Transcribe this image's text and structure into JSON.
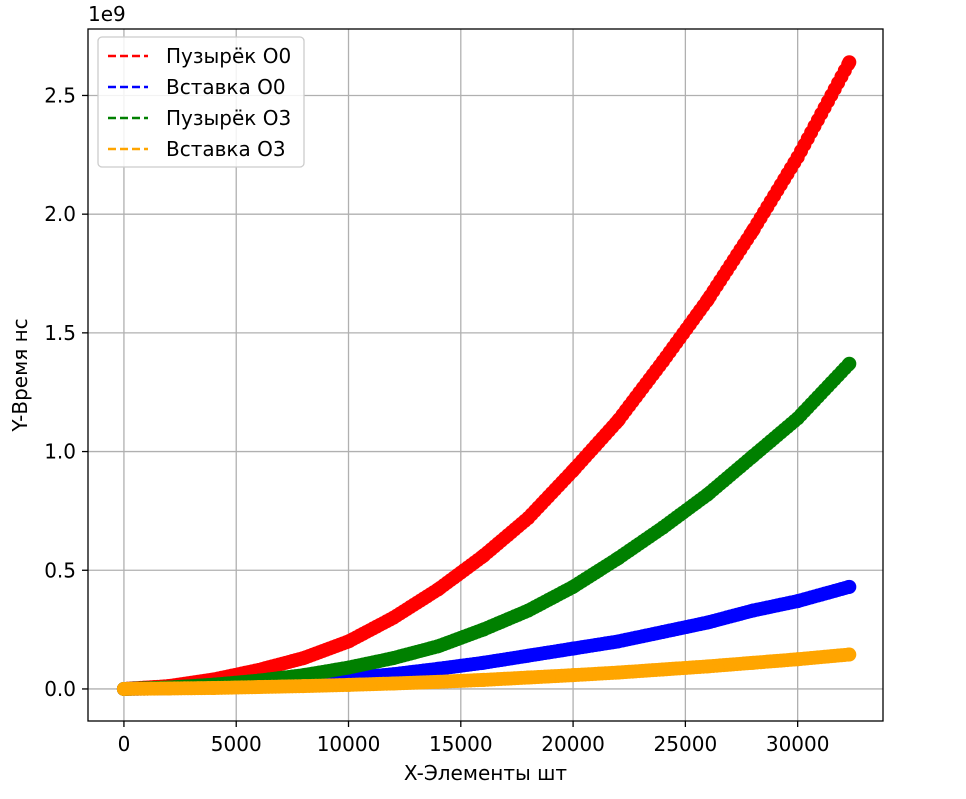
{
  "chart_data": {
    "type": "scatter",
    "title": "",
    "xlabel": "X-Элементы шт",
    "ylabel": "Y-Время нс",
    "y_offset_text": "1e9",
    "xlim": [
      -1600,
      33800
    ],
    "ylim": [
      -0.135,
      2.78
    ],
    "x_ticks": [
      0,
      5000,
      10000,
      15000,
      20000,
      25000,
      30000
    ],
    "x_tick_labels": [
      "0",
      "5000",
      "10000",
      "15000",
      "20000",
      "25000",
      "30000"
    ],
    "y_ticks": [
      0.0,
      0.5,
      1.0,
      1.5,
      2.0,
      2.5
    ],
    "y_tick_labels": [
      "0.0",
      "0.5",
      "1.0",
      "1.5",
      "2.0",
      "2.5"
    ],
    "grid": true,
    "legend_position": "top-left",
    "series": [
      {
        "name": "Пузырёк O0",
        "color": "#ff0000",
        "x": [
          0,
          2000,
          4000,
          6000,
          8000,
          10000,
          12000,
          14000,
          16000,
          18000,
          20000,
          22000,
          24000,
          26000,
          28000,
          30000,
          32300
        ],
        "y": [
          0.0,
          0.012,
          0.04,
          0.08,
          0.13,
          0.2,
          0.3,
          0.42,
          0.56,
          0.72,
          0.92,
          1.13,
          1.38,
          1.64,
          1.93,
          2.24,
          2.64
        ]
      },
      {
        "name": "Вставка O0",
        "color": "#0000ff",
        "x": [
          0,
          2000,
          4000,
          6000,
          8000,
          10000,
          12000,
          14000,
          16000,
          18000,
          20000,
          22000,
          24000,
          26000,
          28000,
          30000,
          32300
        ],
        "y": [
          0.0,
          0.003,
          0.008,
          0.017,
          0.03,
          0.045,
          0.062,
          0.085,
          0.11,
          0.14,
          0.17,
          0.2,
          0.24,
          0.28,
          0.33,
          0.37,
          0.43
        ]
      },
      {
        "name": "Пузырёк O3",
        "color": "#008000",
        "x": [
          0,
          2000,
          4000,
          6000,
          8000,
          10000,
          12000,
          14000,
          16000,
          18000,
          20000,
          22000,
          24000,
          26000,
          28000,
          30000,
          32300
        ],
        "y": [
          0.0,
          0.006,
          0.018,
          0.035,
          0.058,
          0.09,
          0.13,
          0.18,
          0.25,
          0.33,
          0.43,
          0.55,
          0.68,
          0.82,
          0.98,
          1.14,
          1.37
        ]
      },
      {
        "name": "Вставка O3",
        "color": "#ffa500",
        "x": [
          0,
          2000,
          4000,
          6000,
          8000,
          10000,
          12000,
          14000,
          16000,
          18000,
          20000,
          22000,
          24000,
          26000,
          28000,
          30000,
          32300
        ],
        "y": [
          0.0,
          0.002,
          0.004,
          0.008,
          0.012,
          0.017,
          0.023,
          0.03,
          0.038,
          0.048,
          0.058,
          0.069,
          0.082,
          0.095,
          0.11,
          0.125,
          0.145
        ]
      }
    ]
  }
}
